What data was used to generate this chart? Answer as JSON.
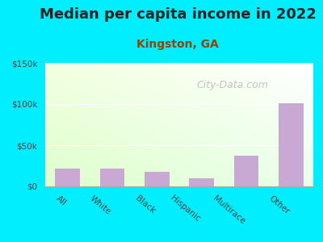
{
  "title": "Median per capita income in 2022",
  "subtitle": "Kingston, GA",
  "categories": [
    "All",
    "White",
    "Black",
    "Hispanic",
    "Multirace",
    "Other"
  ],
  "values": [
    22000,
    21500,
    18000,
    10000,
    37000,
    101000
  ],
  "bar_color": "#c9a8d4",
  "title_fontsize": 13,
  "subtitle_fontsize": 10,
  "subtitle_color": "#8b4513",
  "title_color": "#222222",
  "background_outer": "#00eeff",
  "ylim": [
    0,
    150000
  ],
  "yticks": [
    0,
    50000,
    100000,
    150000
  ],
  "ytick_labels": [
    "$0",
    "$50k",
    "$100k",
    "$150k"
  ],
  "watermark": "City-Data.com",
  "xlabel_rotation": -40,
  "bar_width": 0.55
}
